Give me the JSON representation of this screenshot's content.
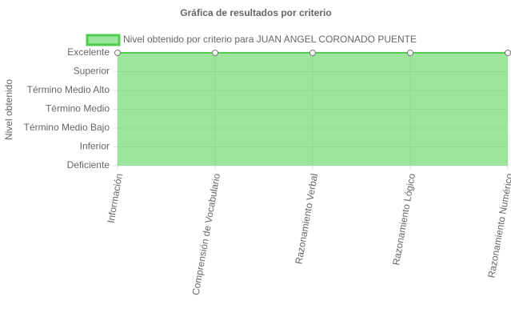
{
  "chart_data": {
    "type": "area",
    "title": "Gráfica de resultados por criterio",
    "y_label": "Nivel obtenido",
    "categories": [
      "Información",
      "Comprensión de Vocabulario",
      "Razonamiento Verbal",
      "Razonamiento Lógico",
      "Razonamiento Numérico"
    ],
    "series": [
      {
        "name": "Nivel obtenido por criterio para JUAN ANGEL CORONADO PUENTE",
        "color": "#4dcf4d",
        "values": [
          6,
          6,
          6,
          6,
          6
        ]
      }
    ],
    "ylim": [
      0,
      6
    ],
    "yticks": [
      {
        "value": 0,
        "label": "Deficiente"
      },
      {
        "value": 1,
        "label": "Inferior"
      },
      {
        "value": 2,
        "label": "Término Medio Bajo"
      },
      {
        "value": 3,
        "label": "Término Medio"
      },
      {
        "value": 4,
        "label": "Término Medio Alto"
      },
      {
        "value": 5,
        "label": "Superior"
      },
      {
        "value": 6,
        "label": "Excelente"
      }
    ],
    "grid": true,
    "legend": "top"
  }
}
